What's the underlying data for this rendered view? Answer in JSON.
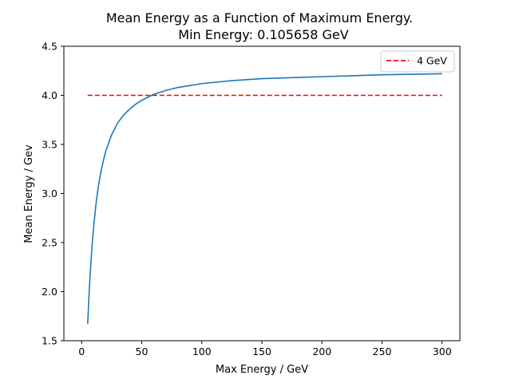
{
  "chart_data": {
    "type": "line",
    "title": "Mean Energy as a Function of Maximum Energy.",
    "subtitle": "Min Energy: 0.105658 GeV",
    "xlabel": "Max Energy / GeV",
    "ylabel": "Mean Energy / Gev",
    "xlim": [
      -14.8,
      314.8
    ],
    "ylim": [
      1.5,
      4.5
    ],
    "xticks": [
      0,
      50,
      100,
      150,
      200,
      250,
      300
    ],
    "yticks": [
      1.5,
      2.0,
      2.5,
      3.0,
      3.5,
      4.0,
      4.5
    ],
    "xtick_labels": [
      "0",
      "50",
      "100",
      "150",
      "200",
      "250",
      "300"
    ],
    "ytick_labels": [
      "1.5",
      "2.0",
      "2.5",
      "3.0",
      "3.5",
      "4.0",
      "4.5"
    ],
    "grid": false,
    "legend_position": "top-right",
    "series": [
      {
        "color": "#1f77b4",
        "style": "solid",
        "x": [
          5,
          6,
          7,
          8,
          9,
          10,
          12,
          14,
          16,
          18,
          20,
          25,
          30,
          35,
          40,
          45,
          50,
          60,
          70,
          80,
          90,
          100,
          125,
          150,
          175,
          200,
          225,
          250,
          275,
          300
        ],
        "y": [
          1.67,
          1.93,
          2.16,
          2.35,
          2.52,
          2.66,
          2.9,
          3.08,
          3.22,
          3.33,
          3.43,
          3.6,
          3.72,
          3.8,
          3.86,
          3.91,
          3.95,
          4.01,
          4.05,
          4.08,
          4.1,
          4.12,
          4.15,
          4.17,
          4.18,
          4.19,
          4.2,
          4.21,
          4.215,
          4.22
        ]
      },
      {
        "name": "4 GeV",
        "color": "#ff0000",
        "style": "dashed",
        "x": [
          5,
          300
        ],
        "y": [
          4.0,
          4.0
        ]
      }
    ]
  }
}
